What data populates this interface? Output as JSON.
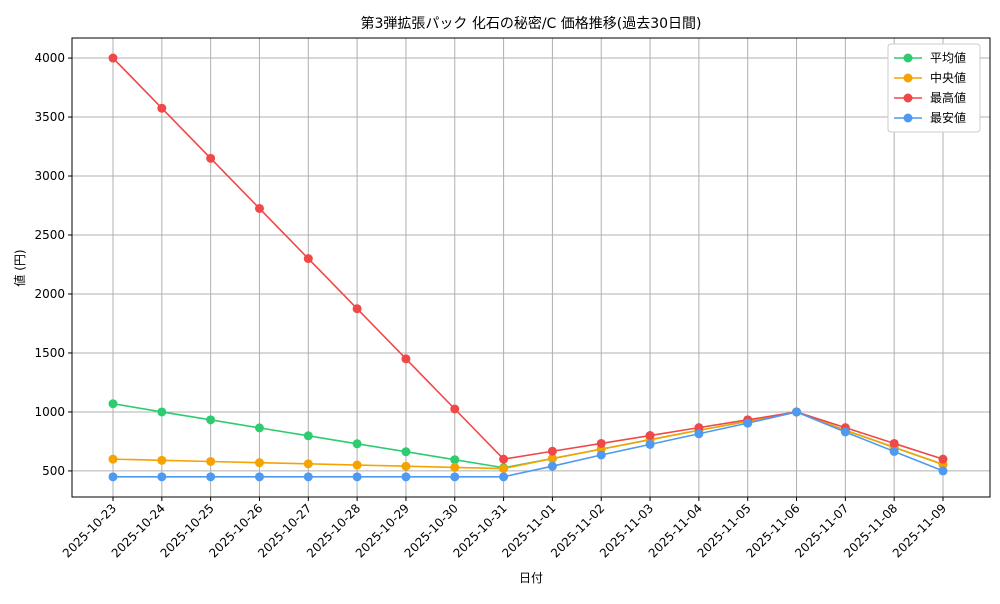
{
  "chart_data": {
    "type": "line",
    "title": "第3弾拡張パック 化石の秘密/C 価格推移(過去30日間)",
    "x_label": "日付",
    "y_label": "値 (円)",
    "categories": [
      "2025-10-23",
      "2025-10-24",
      "2025-10-25",
      "2025-10-26",
      "2025-10-27",
      "2025-10-28",
      "2025-10-29",
      "2025-10-30",
      "2025-10-31",
      "2025-11-01",
      "2025-11-02",
      "2025-11-03",
      "2025-11-04",
      "2025-11-05",
      "2025-11-06",
      "2025-11-07",
      "2025-11-08",
      "2025-11-09"
    ],
    "series": [
      {
        "name": "平均値",
        "color": "#2ecc71",
        "values": [
          1070,
          1000,
          933,
          865,
          798,
          730,
          663,
          595,
          527,
          605,
          685,
          765,
          845,
          920,
          1000,
          845,
          700,
          555
        ]
      },
      {
        "name": "中央値",
        "color": "#f5a300",
        "values": [
          600,
          590,
          580,
          570,
          560,
          550,
          540,
          530,
          520,
          605,
          685,
          765,
          845,
          920,
          1000,
          845,
          700,
          555
        ]
      },
      {
        "name": "最高値",
        "color": "#f04848",
        "values": [
          4000,
          3575,
          3150,
          2725,
          2300,
          1875,
          1450,
          1025,
          600,
          667,
          733,
          800,
          867,
          933,
          1000,
          867,
          733,
          600
        ]
      },
      {
        "name": "最安値",
        "color": "#4e9af1",
        "values": [
          450,
          450,
          450,
          450,
          450,
          450,
          450,
          450,
          450,
          540,
          635,
          725,
          815,
          905,
          1000,
          830,
          665,
          500
        ]
      }
    ],
    "ylim": [
      279,
      4170
    ],
    "yticks": [
      500,
      1000,
      1500,
      2000,
      2500,
      3000,
      3500,
      4000
    ],
    "grid": true,
    "legend": "upper right"
  }
}
